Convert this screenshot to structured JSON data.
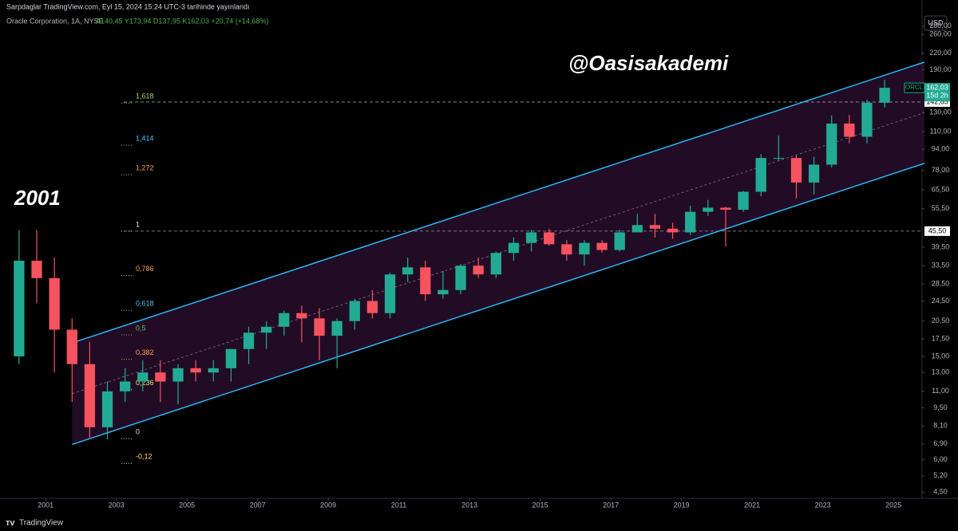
{
  "chart_data": {
    "type": "candlestick",
    "publisher": "Sarpdaglar TradingView.com, Eyl 15, 2024 15:24 UTC-3 tarihinde yayınlandı",
    "title": "Oracle Corporation, 1A, NYSE",
    "ohlc_text": "A140,45 Y173,94 D137,95 K162,03 +20,74 (+14,68%)",
    "annotations": [
      "@Oasisakademi",
      "2001"
    ],
    "currency": "USD",
    "branding": "TradingView",
    "log_scale": true,
    "grid": false,
    "up_color": "#22ab94",
    "down_color": "#f7525f",
    "xlim": [
      1999.71,
      2025.81
    ],
    "xticks": [
      2001,
      2003,
      2005,
      2007,
      2009,
      2011,
      2013,
      2015,
      2017,
      2019,
      2021,
      2023,
      2025
    ],
    "ylim": [
      4.0,
      302
    ],
    "yticks": [
      {
        "value": 4.5,
        "label": "4,50"
      },
      {
        "value": 5.2,
        "label": "5,20"
      },
      {
        "value": 6.0,
        "label": "6,00"
      },
      {
        "value": 6.9,
        "label": "6,90"
      },
      {
        "value": 8.1,
        "label": "8,10"
      },
      {
        "value": 9.5,
        "label": "9,50"
      },
      {
        "value": 11,
        "label": "11,00"
      },
      {
        "value": 13,
        "label": "13,00"
      },
      {
        "value": 15,
        "label": "15,00"
      },
      {
        "value": 17.5,
        "label": "17,50"
      },
      {
        "value": 20.5,
        "label": "20,50"
      },
      {
        "value": 24.5,
        "label": "24,50"
      },
      {
        "value": 28.5,
        "label": "28,50"
      },
      {
        "value": 33.5,
        "label": "33,50"
      },
      {
        "value": 39.5,
        "label": "39,50"
      },
      {
        "value": 55.5,
        "label": "55,50"
      },
      {
        "value": 65.5,
        "label": "65,50"
      },
      {
        "value": 78,
        "label": "78,00"
      },
      {
        "value": 94,
        "label": "94,00"
      },
      {
        "value": 110,
        "label": "110,00"
      },
      {
        "value": 130,
        "label": "130,00"
      },
      {
        "value": 190,
        "label": "190,00"
      },
      {
        "value": 220,
        "label": "220,00"
      },
      {
        "value": 260,
        "label": "260,00"
      },
      {
        "value": 280,
        "label": "280,00"
      }
    ],
    "x": [
      2000.25,
      2000.75,
      2001.25,
      2001.75,
      2002.25,
      2002.75,
      2003.25,
      2003.75,
      2004.25,
      2004.75,
      2005.25,
      2005.75,
      2006.25,
      2006.75,
      2007.25,
      2007.75,
      2008.25,
      2008.75,
      2009.25,
      2009.75,
      2010.25,
      2010.75,
      2011.25,
      2011.75,
      2012.25,
      2012.75,
      2013.25,
      2013.75,
      2014.25,
      2014.75,
      2015.25,
      2015.75,
      2016.25,
      2016.75,
      2017.25,
      2017.75,
      2018.25,
      2018.75,
      2019.25,
      2019.75,
      2020.25,
      2020.75,
      2021.25,
      2021.75,
      2022.25,
      2022.75,
      2023.25,
      2023.75,
      2024.25,
      2024.75
    ],
    "open": [
      15,
      35,
      30,
      19,
      14,
      8,
      11,
      12,
      13,
      12,
      13.5,
      13,
      13.5,
      16,
      18.5,
      19.5,
      22,
      21,
      18,
      20.5,
      24.5,
      22,
      31,
      33,
      26,
      27,
      33.5,
      31,
      37.5,
      41,
      45,
      40.5,
      37,
      41,
      38.5,
      45,
      48,
      46.5,
      45,
      54,
      56,
      55,
      64.5,
      87,
      87,
      70,
      82,
      118,
      105,
      142
    ],
    "high": [
      46,
      46,
      36,
      21,
      17,
      12,
      13.5,
      14.5,
      14.5,
      14,
      14.5,
      14.5,
      16,
      19.5,
      20.5,
      22.5,
      23.5,
      23,
      21,
      25,
      27,
      31.5,
      36,
      35,
      32,
      34,
      36,
      38,
      43,
      46,
      46.5,
      42,
      42,
      42,
      46,
      53,
      53,
      49,
      57,
      60,
      56.5,
      65,
      90,
      106,
      89,
      88,
      127,
      127.5,
      146,
      174
    ],
    "low": [
      14,
      24,
      13,
      10,
      7.3,
      7.2,
      10,
      11,
      10,
      9.8,
      12,
      12,
      12,
      14,
      16,
      18,
      17,
      14.5,
      13.5,
      19,
      21,
      21,
      29,
      24.5,
      25,
      26,
      30,
      30,
      35,
      38,
      40,
      35,
      33.5,
      37.5,
      38,
      45,
      43,
      42.5,
      44,
      52,
      39.7,
      54,
      62,
      85,
      60.8,
      63,
      80,
      99,
      99,
      136
    ],
    "close": [
      35,
      30,
      19,
      14,
      8,
      11,
      12,
      13,
      12,
      13.5,
      13,
      13.5,
      16,
      18.5,
      19.5,
      22,
      21,
      18,
      20.5,
      24.5,
      22,
      31,
      33,
      26,
      27,
      33.5,
      31,
      37.5,
      41,
      45,
      40.5,
      37,
      41,
      38.5,
      45,
      48,
      46.5,
      45,
      54,
      56,
      55,
      64.5,
      87,
      87,
      70,
      82,
      118,
      105,
      142,
      162.03
    ],
    "channel": {
      "x": [
        2001.75,
        2025.88
      ],
      "upper": [
        16.9,
        203.5
      ],
      "lower": [
        6.87,
        83.0
      ],
      "color": "#29b6f6",
      "fill": "#2a0f2e"
    },
    "fib": {
      "low": 7.24,
      "high": 45.5,
      "levels": [
        {
          "value": 1.618,
          "label": "1,618",
          "color": "#a5d66b"
        },
        {
          "value": 1.414,
          "label": "1,414",
          "color": "#4fc3f7"
        },
        {
          "value": 1.272,
          "label": "1,272",
          "color": "#ff9f40"
        },
        {
          "value": 1,
          "label": "1",
          "color": "#e0e0e0"
        },
        {
          "value": 0.786,
          "label": "0,786",
          "color": "#ff9f40"
        },
        {
          "value": 0.618,
          "label": "0,618",
          "color": "#4fc3f7"
        },
        {
          "value": 0.5,
          "label": "0,5",
          "color": "#66bb6a"
        },
        {
          "value": 0.382,
          "label": "0,382",
          "color": "#ff9f40"
        },
        {
          "value": 0.236,
          "label": "0,236",
          "color": "#f5e663"
        },
        {
          "value": 0,
          "label": "0",
          "color": "#e0e0e0"
        },
        {
          "value": -0.12,
          "label": "-0,12",
          "color": "#f5e663"
        }
      ]
    },
    "price_lines": [
      {
        "value": 142.85,
        "label": "142,85"
      },
      {
        "value": 45.5,
        "label": "45,50"
      }
    ],
    "last": {
      "symbol": "ORCL",
      "value": 162.03,
      "label": "162,03",
      "countdown": "15d 2h"
    }
  }
}
